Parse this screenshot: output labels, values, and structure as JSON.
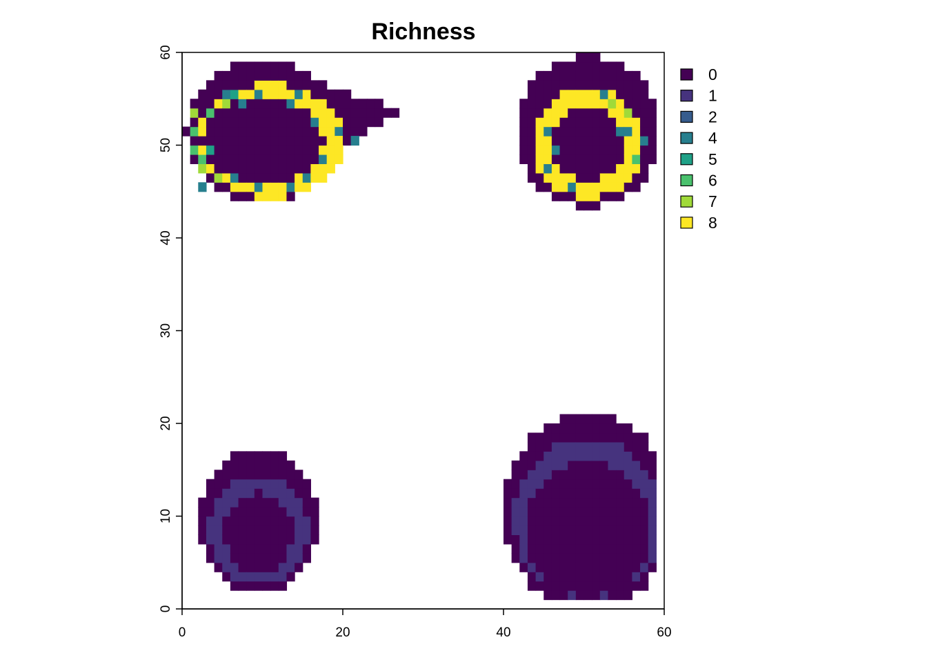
{
  "chart_data": {
    "type": "heatmap",
    "title": "Richness",
    "xlabel": "",
    "ylabel": "",
    "xlim": [
      0,
      60
    ],
    "ylim": [
      0,
      60
    ],
    "x_ticks": [
      "0",
      "20",
      "40",
      "60"
    ],
    "y_ticks": [
      "0",
      "10",
      "20",
      "30",
      "40",
      "50",
      "60"
    ],
    "grid": false,
    "legend_position": "right",
    "legend": [
      {
        "label": "0",
        "color": "#440154"
      },
      {
        "label": "1",
        "color": "#46337e"
      },
      {
        "label": "2",
        "color": "#365c8d"
      },
      {
        "label": "4",
        "color": "#277f8e"
      },
      {
        "label": "5",
        "color": "#1fa187"
      },
      {
        "label": "6",
        "color": "#4ac16d"
      },
      {
        "label": "7",
        "color": "#a0da39"
      },
      {
        "label": "8",
        "color": "#fde725"
      }
    ],
    "cell_size": 1,
    "regions": [
      {
        "name": "top-left blob",
        "x_range": [
          1,
          27
        ],
        "y_range": [
          43,
          59
        ],
        "outer_value": 0,
        "ring_value": 8,
        "core_value": 0,
        "mixed_ring_values": [
          4,
          5,
          6,
          7
        ]
      },
      {
        "name": "top-right blob",
        "x_range": [
          40,
          59
        ],
        "y_range": [
          43,
          59
        ],
        "outer_value": 0,
        "ring_value": 8,
        "core_value": 0,
        "mixed_ring_values": [
          4,
          6,
          7
        ]
      },
      {
        "name": "bottom-left blob",
        "x_range": [
          2,
          17
        ],
        "y_range": [
          2,
          17
        ],
        "outer_value": 0,
        "ring_value": 1,
        "core_value": 0
      },
      {
        "name": "bottom-right blob",
        "x_range": [
          39,
          59
        ],
        "y_range": [
          1,
          21
        ],
        "outer_value": 0,
        "ring_value": 1,
        "core_value": 0
      }
    ]
  }
}
